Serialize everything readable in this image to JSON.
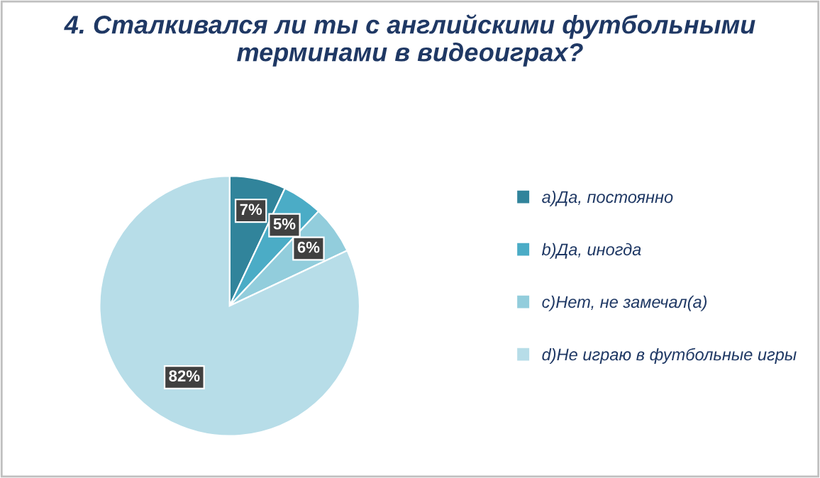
{
  "chart_data": {
    "type": "pie",
    "title": "4. Сталкивался ли ты с английскими футбольными терминами в видеоиграх?",
    "categories": [
      "a)Да, постоянно",
      "b)Да, иногда",
      "c)Нет, не замечал(а)",
      "d)Не играю в футбольные игры"
    ],
    "values": [
      7,
      5,
      6,
      82
    ],
    "value_labels": [
      "7%",
      "5%",
      "6%",
      "82%"
    ],
    "colors": [
      "#31849b",
      "#4bacc6",
      "#92cddc",
      "#b7dde8"
    ],
    "legend": "right"
  }
}
